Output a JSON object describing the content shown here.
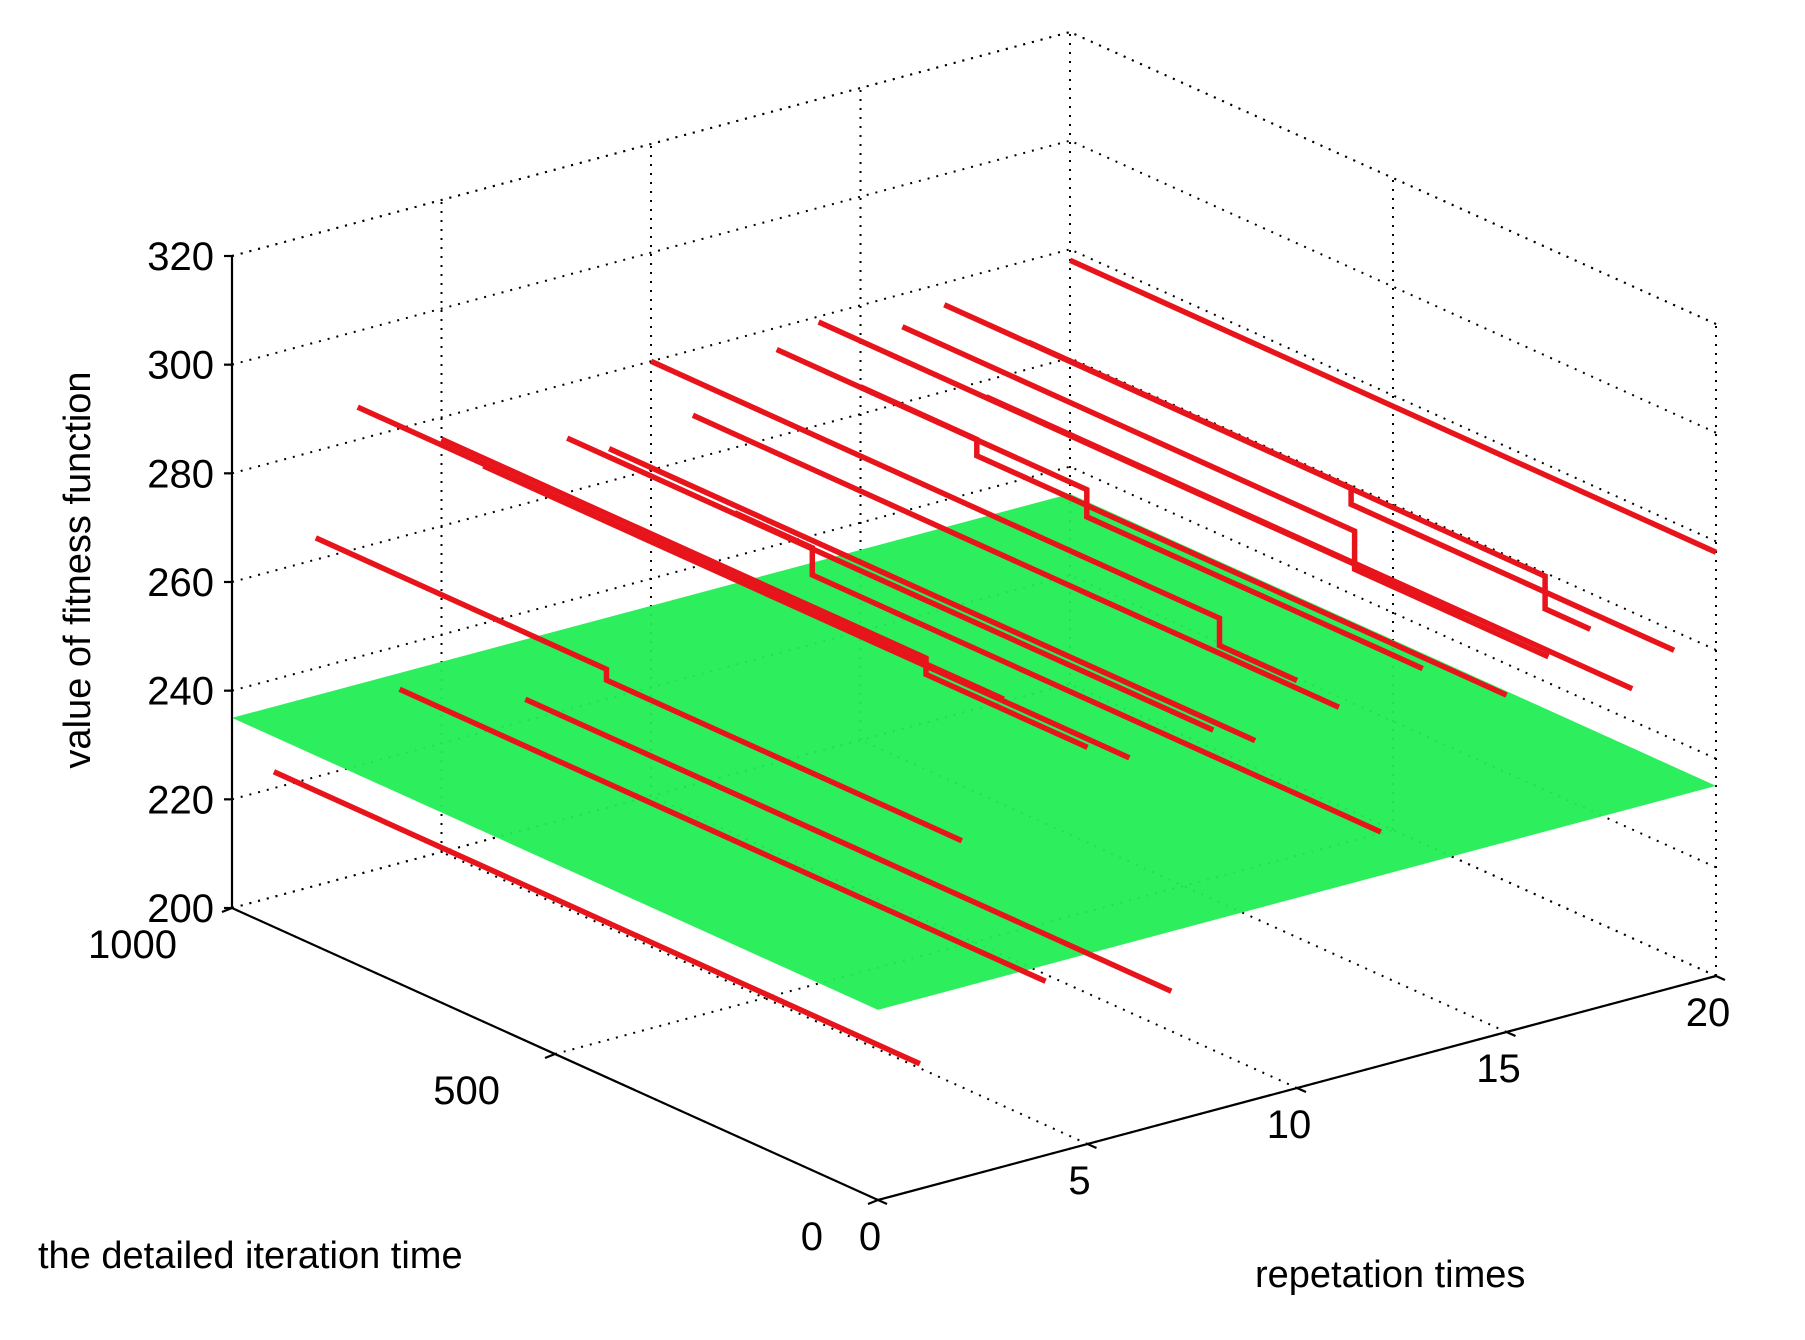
{
  "chart_data": {
    "type": "line3d",
    "xlabel": "repetation times",
    "ylabel": "the detailed iteration time",
    "zlabel": "value of fitness function",
    "xlim": [
      0,
      20
    ],
    "ylim": [
      0,
      1000
    ],
    "zlim": [
      200,
      320
    ],
    "x_ticks": [
      0,
      5,
      10,
      15,
      20
    ],
    "y_ticks": [
      0,
      500,
      1000
    ],
    "z_ticks": [
      200,
      220,
      240,
      260,
      280,
      300,
      320
    ],
    "grid": true,
    "colors": {
      "series": "#e8141b",
      "surface": "#22ee55"
    },
    "surface": {
      "z": 235
    },
    "series": [
      {
        "x": 1,
        "y": [
          0,
          1000
        ],
        "z": [
          223,
          223
        ]
      },
      {
        "x": 2,
        "y": [
          0,
          1000
        ],
        "z": [
          262,
          262
        ],
        "steps": [
          [
            550,
            264
          ]
        ]
      },
      {
        "x": 3,
        "y": [
          0,
          1000
        ],
        "z": [
          286,
          286
        ]
      },
      {
        "x": 4,
        "y": [
          0,
          1000
        ],
        "z": [
          232,
          232
        ]
      },
      {
        "x": 5,
        "y": [
          0,
          1000
        ],
        "z": [
          273,
          273
        ],
        "steps": [
          [
            250,
            276
          ]
        ]
      },
      {
        "x": 6,
        "y": [
          0,
          1000
        ],
        "z": [
          269,
          269
        ]
      },
      {
        "x": 7,
        "y": [
          0,
          1000
        ],
        "z": [
          224,
          224
        ]
      },
      {
        "x": 8,
        "y": [
          0,
          1000
        ],
        "z": [
          270,
          270
        ]
      },
      {
        "x": 9,
        "y": [
          0,
          1000
        ],
        "z": [
          266,
          266
        ]
      },
      {
        "x": 10,
        "y": [
          0,
          1000
        ],
        "z": [
          275,
          275
        ],
        "steps": [
          [
            120,
            280
          ]
        ]
      },
      {
        "x": 11,
        "y": [
          0,
          1000
        ],
        "z": [
          268,
          268
        ]
      },
      {
        "x": 12,
        "y": [
          0,
          1000
        ],
        "z": [
          243,
          243
        ],
        "steps": [
          [
            880,
            248
          ]
        ]
      },
      {
        "x": 13,
        "y": [
          0,
          1000
        ],
        "z": [
          271,
          271
        ],
        "steps": [
          [
            520,
            276
          ]
        ]
      },
      {
        "x": 14,
        "y": [
          0,
          1000
        ],
        "z": [
          279,
          279
        ]
      },
      {
        "x": 15,
        "y": [
          0,
          1000
        ],
        "z": [
          262,
          262
        ],
        "steps": [
          [
            820,
            265
          ]
        ]
      },
      {
        "x": 16,
        "y": [
          0,
          1000
        ],
        "z": [
          267,
          267
        ],
        "steps": [
          [
            300,
            274
          ]
        ]
      },
      {
        "x": 17,
        "y": [
          0,
          1000
        ],
        "z": [
          270,
          270
        ],
        "steps": [
          [
            70,
            276
          ]
        ]
      },
      {
        "x": 18,
        "y": [
          0,
          1000
        ],
        "z": [
          257,
          257
        ]
      },
      {
        "x": 19,
        "y": [
          0,
          1000
        ],
        "z": [
          262,
          262
        ],
        "steps": [
          [
            500,
            265
          ]
        ]
      },
      {
        "x": 20,
        "y": [
          0,
          1000
        ],
        "z": [
          278,
          278
        ]
      }
    ]
  }
}
